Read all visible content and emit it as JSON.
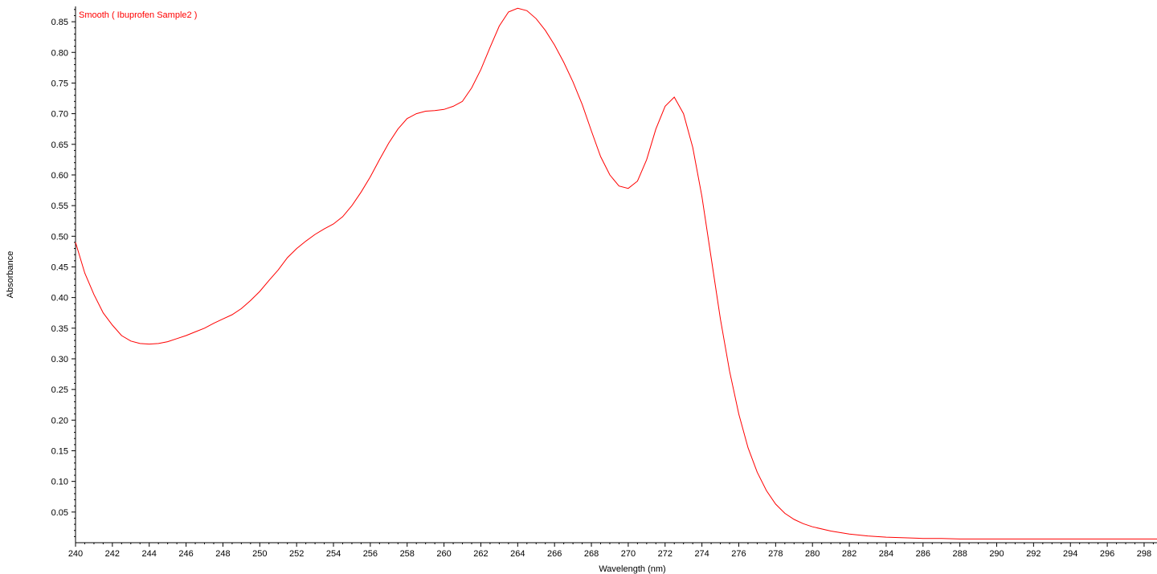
{
  "colors": {
    "series": "#ff0000",
    "axis": "#000000",
    "background": "#ffffff"
  },
  "chart_data": {
    "type": "line",
    "title": "",
    "xlabel": "Wavelength (nm)",
    "ylabel": "Absorbance",
    "xlim": [
      240,
      298.7
    ],
    "ylim": [
      0,
      0.875
    ],
    "grid": false,
    "legend": {
      "placement": "top-left"
    },
    "x_ticks": [
      240,
      242,
      244,
      246,
      248,
      250,
      252,
      254,
      256,
      258,
      260,
      262,
      264,
      266,
      268,
      270,
      272,
      274,
      276,
      278,
      280,
      282,
      284,
      286,
      288,
      290,
      292,
      294,
      296,
      298
    ],
    "y_ticks": [
      0.05,
      0.1,
      0.15,
      0.2,
      0.25,
      0.3,
      0.35,
      0.4,
      0.45,
      0.5,
      0.55,
      0.6,
      0.65,
      0.7,
      0.75,
      0.8,
      0.85
    ],
    "x_tick_labels": [
      "240",
      "242",
      "244",
      "246",
      "248",
      "250",
      "252",
      "254",
      "256",
      "258",
      "260",
      "262",
      "264",
      "266",
      "268",
      "270",
      "272",
      "274",
      "276",
      "278",
      "280",
      "282",
      "284",
      "286",
      "288",
      "290",
      "292",
      "294",
      "296",
      "298"
    ],
    "y_tick_labels": [
      "0.05",
      "0.10",
      "0.15",
      "0.20",
      "0.25",
      "0.30",
      "0.35",
      "0.40",
      "0.45",
      "0.50",
      "0.55",
      "0.60",
      "0.65",
      "0.70",
      "0.75",
      "0.80",
      "0.85"
    ],
    "series": [
      {
        "name": "Smooth ( Ibuprofen Sample2 )",
        "x": [
          240,
          240.5,
          241,
          241.5,
          242,
          242.5,
          243,
          243.5,
          244,
          244.5,
          245,
          245.5,
          246,
          246.5,
          247,
          247.5,
          248,
          248.5,
          249,
          249.5,
          250,
          250.5,
          251,
          251.5,
          252,
          252.5,
          253,
          253.5,
          254,
          254.5,
          255,
          255.5,
          256,
          256.5,
          257,
          257.5,
          258,
          258.5,
          259,
          259.5,
          260,
          260.5,
          261,
          261.5,
          262,
          262.5,
          263,
          263.5,
          264,
          264.5,
          265,
          265.5,
          266,
          266.5,
          267,
          267.5,
          268,
          268.5,
          269,
          269.5,
          270,
          270.5,
          271,
          271.5,
          272,
          272.5,
          273,
          273.5,
          274,
          274.5,
          275,
          275.5,
          276,
          276.5,
          277,
          277.5,
          278,
          278.5,
          279,
          279.5,
          280,
          281,
          282,
          283,
          284,
          285,
          286,
          287,
          288,
          290,
          292,
          294,
          296,
          298,
          298.7
        ],
        "y": [
          0.49,
          0.44,
          0.405,
          0.375,
          0.355,
          0.338,
          0.329,
          0.325,
          0.324,
          0.325,
          0.328,
          0.333,
          0.338,
          0.344,
          0.35,
          0.358,
          0.365,
          0.372,
          0.382,
          0.395,
          0.41,
          0.428,
          0.445,
          0.465,
          0.48,
          0.492,
          0.503,
          0.512,
          0.52,
          0.532,
          0.55,
          0.572,
          0.597,
          0.625,
          0.652,
          0.675,
          0.692,
          0.7,
          0.704,
          0.705,
          0.707,
          0.712,
          0.72,
          0.742,
          0.772,
          0.808,
          0.843,
          0.866,
          0.872,
          0.868,
          0.855,
          0.836,
          0.812,
          0.784,
          0.752,
          0.715,
          0.672,
          0.63,
          0.6,
          0.582,
          0.578,
          0.59,
          0.625,
          0.675,
          0.712,
          0.727,
          0.7,
          0.645,
          0.565,
          0.465,
          0.365,
          0.28,
          0.21,
          0.155,
          0.115,
          0.085,
          0.063,
          0.048,
          0.038,
          0.031,
          0.026,
          0.019,
          0.014,
          0.011,
          0.009,
          0.008,
          0.007,
          0.007,
          0.006,
          0.006,
          0.006,
          0.006,
          0.006,
          0.006,
          0.006
        ]
      }
    ]
  }
}
